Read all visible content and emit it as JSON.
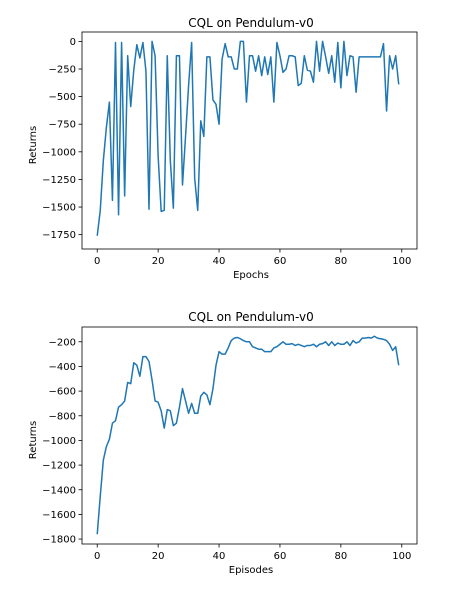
{
  "chart_data": [
    {
      "type": "line",
      "title": "CQL on Pendulum-v0",
      "xlabel": "Epochs",
      "ylabel": "Returns",
      "xlim": [
        -5,
        105
      ],
      "ylim": [
        -1880,
        85
      ],
      "xticks": [
        0,
        20,
        40,
        60,
        80,
        100
      ],
      "yticks": [
        0,
        -250,
        -500,
        -750,
        -1000,
        -1250,
        -1500,
        -1750
      ],
      "grid": false,
      "line_color": "#1f77b4",
      "series": [
        {
          "x": [
            0,
            1,
            2,
            3,
            4,
            5,
            6,
            7,
            8,
            9,
            10,
            11,
            12,
            13,
            14,
            15,
            16,
            17,
            18,
            19,
            20,
            21,
            22,
            23,
            24,
            25,
            26,
            27,
            28,
            29,
            30,
            31,
            32,
            33,
            34,
            35,
            36,
            37,
            38,
            39,
            40,
            41,
            42,
            43,
            44,
            45,
            46,
            47,
            48,
            49,
            50,
            51,
            52,
            53,
            54,
            55,
            56,
            57,
            58,
            59,
            60,
            61,
            62,
            63,
            64,
            65,
            66,
            67,
            68,
            69,
            70,
            71,
            72,
            73,
            74,
            75,
            76,
            77,
            78,
            79,
            80,
            81,
            82,
            83,
            84,
            85,
            86,
            87,
            88,
            89,
            90,
            91,
            92,
            93,
            94,
            95,
            96,
            97,
            98,
            99
          ],
          "values": [
            -1760,
            -1530,
            -1080,
            -780,
            -550,
            -1440,
            -10,
            -1570,
            -10,
            -1400,
            -130,
            -590,
            -260,
            -30,
            -150,
            -10,
            -270,
            -1520,
            0,
            -130,
            -1040,
            -1540,
            -1530,
            -130,
            -1080,
            -1510,
            -130,
            -130,
            -1300,
            -860,
            -400,
            -10,
            -1240,
            -1530,
            -720,
            -860,
            -140,
            -140,
            -530,
            -570,
            -750,
            -160,
            -20,
            -140,
            -140,
            -250,
            -250,
            0,
            0,
            -550,
            -130,
            -130,
            -270,
            -130,
            -310,
            -140,
            -300,
            -140,
            -550,
            -10,
            -130,
            -280,
            -250,
            -130,
            -130,
            -140,
            -400,
            -380,
            -130,
            -260,
            -270,
            -370,
            0,
            -270,
            0,
            -140,
            -290,
            -130,
            -370,
            -10,
            -420,
            0,
            -310,
            -130,
            -140,
            -460,
            -140,
            -140,
            -140,
            -140,
            -140,
            -140,
            -140,
            -140,
            -20,
            -630,
            -130,
            -250,
            -130,
            -390
          ]
        }
      ]
    },
    {
      "type": "line",
      "title": "CQL on Pendulum-v0",
      "xlabel": "Episodes",
      "ylabel": "Returns",
      "xlim": [
        -5,
        105
      ],
      "ylim": [
        -1840,
        -80
      ],
      "xticks": [
        0,
        20,
        40,
        60,
        80,
        100
      ],
      "yticks": [
        -200,
        -400,
        -600,
        -800,
        -1000,
        -1200,
        -1400,
        -1600,
        -1800
      ],
      "grid": false,
      "line_color": "#1f77b4",
      "series": [
        {
          "x": [
            0,
            1,
            2,
            3,
            4,
            5,
            6,
            7,
            8,
            9,
            10,
            11,
            12,
            13,
            14,
            15,
            16,
            17,
            18,
            19,
            20,
            21,
            22,
            23,
            24,
            25,
            26,
            27,
            28,
            29,
            30,
            31,
            32,
            33,
            34,
            35,
            36,
            37,
            38,
            39,
            40,
            41,
            42,
            43,
            44,
            45,
            46,
            47,
            48,
            49,
            50,
            51,
            52,
            53,
            54,
            55,
            56,
            57,
            58,
            59,
            60,
            61,
            62,
            63,
            64,
            65,
            66,
            67,
            68,
            69,
            70,
            71,
            72,
            73,
            74,
            75,
            76,
            77,
            78,
            79,
            80,
            81,
            82,
            83,
            84,
            85,
            86,
            87,
            88,
            89,
            90,
            91,
            92,
            93,
            94,
            95,
            96,
            97,
            98,
            99
          ],
          "values": [
            -1760,
            -1450,
            -1160,
            -1050,
            -990,
            -860,
            -840,
            -730,
            -710,
            -680,
            -530,
            -540,
            -370,
            -390,
            -480,
            -320,
            -320,
            -360,
            -510,
            -680,
            -690,
            -760,
            -900,
            -750,
            -760,
            -880,
            -860,
            -730,
            -580,
            -680,
            -780,
            -700,
            -780,
            -780,
            -640,
            -610,
            -630,
            -710,
            -580,
            -390,
            -280,
            -300,
            -300,
            -250,
            -190,
            -170,
            -165,
            -175,
            -190,
            -200,
            -200,
            -240,
            -250,
            -260,
            -260,
            -280,
            -280,
            -280,
            -250,
            -240,
            -220,
            -200,
            -220,
            -220,
            -215,
            -230,
            -220,
            -230,
            -240,
            -230,
            -230,
            -220,
            -240,
            -220,
            -215,
            -200,
            -230,
            -200,
            -230,
            -210,
            -220,
            -220,
            -200,
            -230,
            -190,
            -210,
            -200,
            -170,
            -170,
            -165,
            -170,
            -155,
            -170,
            -175,
            -180,
            -190,
            -220,
            -270,
            -240,
            -390
          ]
        }
      ]
    }
  ]
}
